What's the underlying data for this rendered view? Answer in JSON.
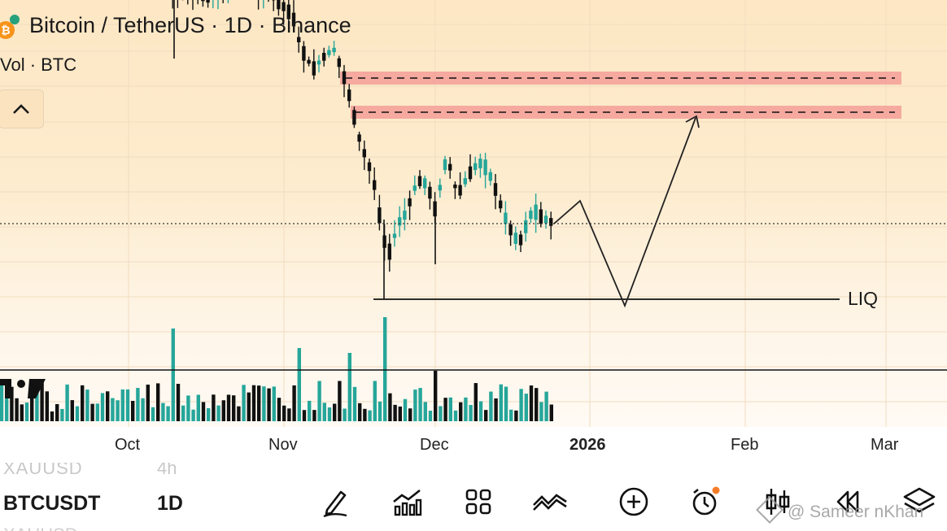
{
  "header": {
    "title": "Bitcoin / TetherUS · 1D · Binance",
    "volume_indicator": "Vol · BTC",
    "btc_glyph": "₿"
  },
  "chart_data": {
    "type": "candlestick",
    "symbol": "BTCUSDT",
    "interval": "1D",
    "x_ticks": [
      "Oct",
      "Nov",
      "Dec",
      "2026",
      "Feb",
      "Mar"
    ],
    "annotations": {
      "liquidity_label": "LIQ",
      "resistance_zones": 2,
      "projected_path": "up-small, down to LIQ, up to upper zone"
    },
    "colors": {
      "up": "#26a69a",
      "down": "#111111",
      "zone": "#f4a29a"
    }
  },
  "toolbar": {
    "ghost_symbol": "XAUUSD",
    "ghost_timeframe": "4h",
    "symbol": "BTCUSDT",
    "timeframe": "1D",
    "ghost_symbol_next": "XAUUSD",
    "icons": [
      "drawing-pen-icon",
      "indicators-chart-icon",
      "layout-grid-icon",
      "compare-lines-icon",
      "add-icon",
      "alert-clock-icon",
      "candle-type-icon",
      "replay-icon",
      "layers-icon"
    ]
  },
  "watermark": "@ Sameer nKhan"
}
